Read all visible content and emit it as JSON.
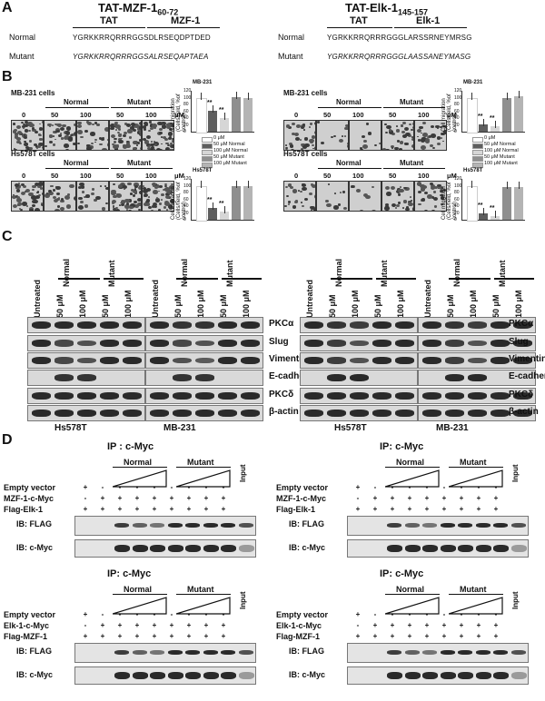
{
  "panelA": {
    "letter": "A",
    "left": {
      "title": "TAT-MZF-1",
      "title_sub": "60-72",
      "seg1": "TAT",
      "seg2": "MZF-1",
      "normal_label": "Normal",
      "mutant_label": "Mutant",
      "normal_seq": "YGRKKRRQRRRGGSDLRSEQDPTDED",
      "mutant_seq": "YGRKKRRQRRRGGSALRSEQAPTAEA"
    },
    "right": {
      "title": "TAT-Elk-1",
      "title_sub": "145-157",
      "seg1": "TAT",
      "seg2": "Elk-1",
      "normal_label": "Normal",
      "mutant_label": "Mutant",
      "normal_seq": "YGRKKRRQRRRGGGLARSSRNEYMRSG",
      "mutant_seq": "YGRKKRRQRRRGGGLAASSANEYMASG"
    }
  },
  "panelB": {
    "letter": "B",
    "mb_cells": "MB-231 cells",
    "hs_cells": "Hs578T cells",
    "normal": "Normal",
    "mutant": "Mutant",
    "dose0": "0",
    "dose50": "50",
    "dose100": "100",
    "unit": "μM",
    "chart_title_mb": "MB-231",
    "chart_title_hs": "Hs578T",
    "ylabel": "Cell migration (Cells/field, %of control)",
    "legend": [
      "0 μM",
      "50 μM Normal",
      "100 μM Normal",
      "50 μM Mutant",
      "100 μM Mutant"
    ],
    "sig": "**",
    "yticks": [
      "0",
      "20",
      "40",
      "60",
      "80",
      "100",
      "120"
    ]
  },
  "chart_data": [
    {
      "type": "bar",
      "title": "MB-231",
      "ylabel": "Cell migration (Cells/field, %of control)",
      "ylim": [
        0,
        120
      ],
      "categories": [
        "0 μM",
        "50 μM Normal",
        "100 μM Normal",
        "50 μM Mutant",
        "100 μM Mutant"
      ],
      "values": [
        100,
        62,
        40,
        102,
        100
      ]
    },
    {
      "type": "bar",
      "title": "Hs578T",
      "ylabel": "Cell migration (Cells/field, %of control)",
      "ylim": [
        0,
        120
      ],
      "categories": [
        "0 μM",
        "50 μM Normal",
        "100 μM Normal",
        "50 μM Mutant",
        "100 μM Mutant"
      ],
      "values": [
        100,
        35,
        25,
        98,
        100
      ]
    },
    {
      "type": "bar",
      "title": "MB-231",
      "ylabel": "Cell migration (Cells/field, %of control)",
      "ylim": [
        0,
        120
      ],
      "categories": [
        "0 μM",
        "50 μM Normal",
        "100 μM Normal",
        "50 μM Mutant",
        "100 μM Mutant"
      ],
      "values": [
        100,
        22,
        15,
        100,
        103
      ]
    },
    {
      "type": "bar",
      "title": "Hs578T",
      "ylabel": "Cell migration (Cells/field, %of control)",
      "ylim": [
        0,
        120
      ],
      "categories": [
        "0 μM",
        "50 μM Normal",
        "100 μM Normal",
        "50 μM Mutant",
        "100 μM Mutant"
      ],
      "values": [
        100,
        20,
        12,
        95,
        97
      ]
    }
  ],
  "panelC": {
    "letter": "C",
    "cols": [
      "Untreated",
      "50 μM",
      "100 μM",
      "50 μM",
      "100 μM"
    ],
    "normal": "Normal",
    "mutant": "Mutant",
    "rows": [
      "PKCα",
      "Slug",
      "Vimentin",
      "E-cadherin",
      "PKCδ",
      "β-actin"
    ],
    "cell1": "Hs578T",
    "cell2": "MB-231"
  },
  "panelD": {
    "letter": "D",
    "ip": "IP : c-Myc",
    "ip2": "IP: c-Myc",
    "normal": "Normal",
    "mutant": "Mutant",
    "input": "Input",
    "empty": "Empty vector",
    "mzf_myc": "MZF-1-c-Myc",
    "flag_elk": "Flag-Elk-1",
    "elk_myc": "Elk-1-c-Myc",
    "flag_mzf": "Flag-MZF-1",
    "ib_flag": "IB: FLAG",
    "ib_myc": "IB: c-Myc",
    "plus": "+",
    "minus": "-"
  }
}
